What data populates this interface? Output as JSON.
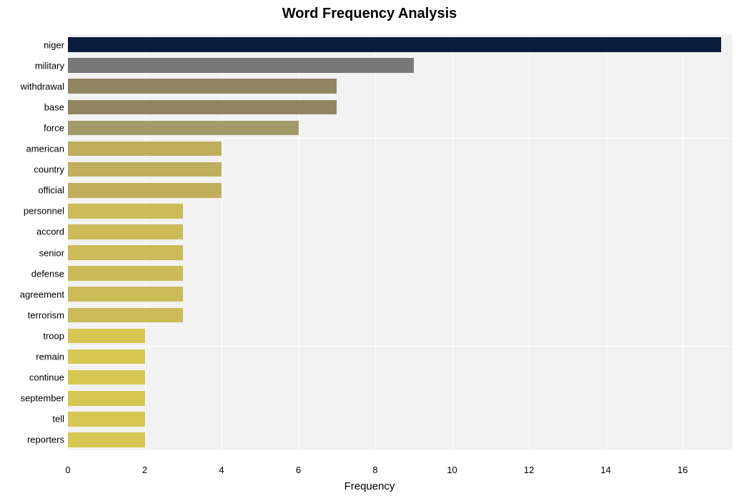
{
  "chart": {
    "type": "bar",
    "orientation": "horizontal",
    "title": "Word Frequency Analysis",
    "title_fontsize": 20,
    "title_fontweight": "bold",
    "title_color": "#000000",
    "xlabel": "Frequency",
    "xlabel_fontsize": 15,
    "xlabel_color": "#000000",
    "ylabel_fontsize": 13,
    "ylabel_color": "#000000",
    "xtick_fontsize": 13,
    "xtick_color": "#000000",
    "background_color": "#ffffff",
    "grid_band_color": "#f2f2f2",
    "gridline_color": "#ffffff",
    "xlim": [
      0,
      17.3
    ],
    "xtick_positions": [
      0,
      2,
      4,
      6,
      8,
      10,
      12,
      14,
      16
    ],
    "xtick_labels": [
      "0",
      "2",
      "4",
      "6",
      "8",
      "10",
      "12",
      "14",
      "16"
    ],
    "bar_height_ratio": 0.71,
    "categories": [
      "niger",
      "military",
      "withdrawal",
      "base",
      "force",
      "american",
      "country",
      "official",
      "personnel",
      "accord",
      "senior",
      "defense",
      "agreement",
      "terrorism",
      "troop",
      "remain",
      "continue",
      "september",
      "tell",
      "reporters"
    ],
    "values": [
      17,
      9,
      7,
      7,
      6,
      4,
      4,
      4,
      3,
      3,
      3,
      3,
      3,
      3,
      2,
      2,
      2,
      2,
      2,
      2
    ],
    "bar_colors": [
      "#0a1d3d",
      "#787878",
      "#908664",
      "#908664",
      "#a39a6b",
      "#bfae5c",
      "#bfae5c",
      "#bfae5c",
      "#cbbb59",
      "#cbbb59",
      "#cbbb59",
      "#cbbb59",
      "#cbbb59",
      "#cbbb59",
      "#d6c752",
      "#d6c752",
      "#d6c752",
      "#d6c752",
      "#d6c752",
      "#d6c752"
    ]
  }
}
